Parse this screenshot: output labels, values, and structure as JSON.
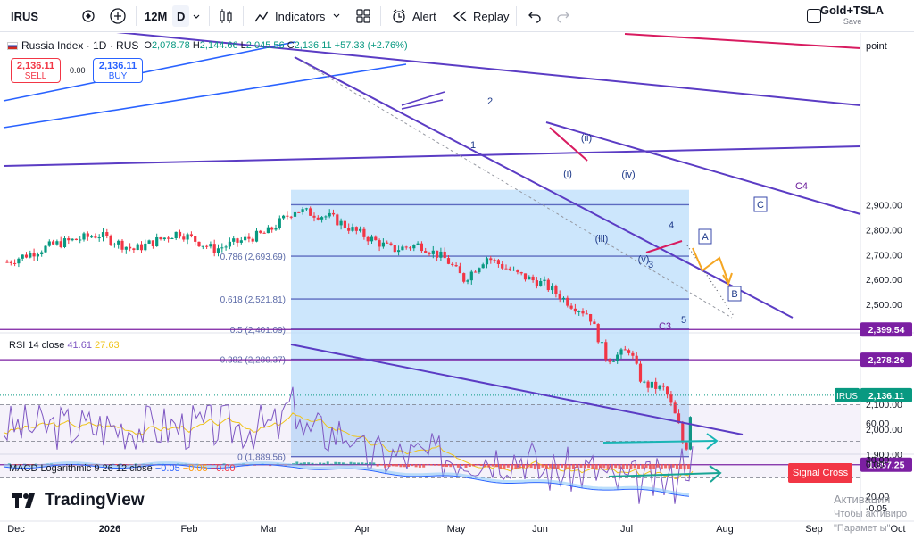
{
  "toolbar": {
    "symbol": "IRUS",
    "timeframe_range": "12M",
    "interval": "D",
    "indicators_label": "Indicators",
    "alert_label": "Alert",
    "replay_label": "Replay",
    "layout_name": "Gold+TSLA",
    "layout_save": "Save"
  },
  "legend": {
    "title": "Russia Index · 1D · RUS",
    "o_label": "O",
    "o": "2,078.78",
    "h_label": "H",
    "h": "2,144.66",
    "l_label": "L",
    "l": "2,045.56",
    "c_label": "C",
    "c": "2,136.11",
    "change": "+57.33 (+2.76%)",
    "sell_price": "2,136.11",
    "sell_label": "SELL",
    "buy_price": "2,136.11",
    "buy_label": "BUY",
    "spread": "0.00"
  },
  "price_axis": {
    "unit": "point",
    "ticks": [
      "2,900.00",
      "2,800.00",
      "2,700.00",
      "2,600.00",
      "2,500.00",
      "2,100.00",
      "2,000.00",
      "1,900.00"
    ],
    "tick_values": [
      2900,
      2800,
      2700,
      2600,
      2500,
      2100,
      2000,
      1900
    ],
    "badges": [
      {
        "text": "2,399.54",
        "value": 2399.54,
        "color": "#7b1fa2"
      },
      {
        "text": "2,278.26",
        "value": 2278.26,
        "color": "#7b1fa2"
      },
      {
        "text": "2,136.11",
        "value": 2136.11,
        "color": "#089981",
        "tag": "IRUS"
      },
      {
        "text": "1,857.25",
        "value": 1857.25,
        "color": "#7b1fa2"
      }
    ]
  },
  "fib_levels": [
    {
      "label": "0.786 (2,693.69)",
      "value": 2693.69
    },
    {
      "label": "0.618 (2,521.81)",
      "value": 2521.81
    },
    {
      "label": "0.5 (2,401.09)",
      "value": 2401.09
    },
    {
      "label": "0.382 (2,280.37)",
      "value": 2280.37
    },
    {
      "label": "0 (1,889.56)",
      "value": 1889.56
    }
  ],
  "wave_labels": [
    "1",
    "2",
    "3",
    "4",
    "5",
    "(i)",
    "(ii)",
    "(iii)",
    "(iv)",
    "(v)",
    "A",
    "B",
    "C",
    "C3",
    "C4"
  ],
  "rsi": {
    "name": "RSI 14 close",
    "value": "41.61",
    "ma": "27.63",
    "ticks": [
      "60.00",
      "40.00",
      "20.00"
    ],
    "tick_values": [
      60,
      40,
      20
    ],
    "upper_band": 70,
    "mid_band": 50,
    "lower_band": 30
  },
  "macd": {
    "name": "MACD Logarithmic 9 26 12 close",
    "v1": "−0.05",
    "v2": "−0.05",
    "v3": "−0.00",
    "ticks": [
      "0.00",
      "-0.05"
    ],
    "signal_label": "Signal Cross"
  },
  "time_axis": [
    "Dec",
    "2026",
    "Feb",
    "Mar",
    "Apr",
    "May",
    "Jun",
    "Jul",
    "Aug",
    "Sep",
    "Oct"
  ],
  "brand": "TradingView",
  "watermark": {
    "line1": "Активация",
    "line2": "Чтобы активиро",
    "line3": "\"Парамет  ы\"."
  },
  "colors": {
    "up": "#089981",
    "down": "#f23645",
    "trend": "#5b3cc4",
    "fib_zone": "#bbdefb",
    "level": "#7b1fa2"
  }
}
